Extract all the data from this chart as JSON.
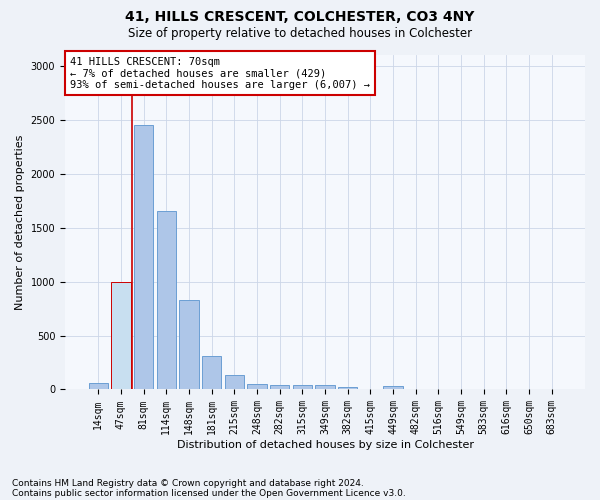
{
  "title1": "41, HILLS CRESCENT, COLCHESTER, CO3 4NY",
  "title2": "Size of property relative to detached houses in Colchester",
  "xlabel": "Distribution of detached houses by size in Colchester",
  "ylabel": "Number of detached properties",
  "categories": [
    "14sqm",
    "47sqm",
    "81sqm",
    "114sqm",
    "148sqm",
    "181sqm",
    "215sqm",
    "248sqm",
    "282sqm",
    "315sqm",
    "349sqm",
    "382sqm",
    "415sqm",
    "449sqm",
    "482sqm",
    "516sqm",
    "549sqm",
    "583sqm",
    "616sqm",
    "650sqm",
    "683sqm"
  ],
  "values": [
    60,
    1000,
    2450,
    1650,
    830,
    310,
    130,
    55,
    45,
    45,
    40,
    22,
    0,
    30,
    0,
    0,
    0,
    0,
    0,
    0,
    0
  ],
  "bar_color": "#aec6e8",
  "bar_edgecolor": "#6b9fd4",
  "highlight_bar_index": 1,
  "highlight_bar_color": "#c8dff0",
  "highlight_bar_edgecolor": "#cc0000",
  "annotation_box_text": "41 HILLS CRESCENT: 70sqm\n← 7% of detached houses are smaller (429)\n93% of semi-detached houses are larger (6,007) →",
  "box_edgecolor": "#cc0000",
  "vline_x": 1.5,
  "vline_color": "#cc0000",
  "footnote1": "Contains HM Land Registry data © Crown copyright and database right 2024.",
  "footnote2": "Contains public sector information licensed under the Open Government Licence v3.0.",
  "ylim": [
    0,
    3100
  ],
  "yticks": [
    0,
    500,
    1000,
    1500,
    2000,
    2500,
    3000
  ],
  "title_fontsize": 10,
  "subtitle_fontsize": 8.5,
  "xlabel_fontsize": 8,
  "ylabel_fontsize": 8,
  "tick_fontsize": 7,
  "annotation_fontsize": 7.5,
  "footnote_fontsize": 6.5,
  "bg_color": "#eef2f8",
  "plot_bg_color": "#f5f8fd",
  "grid_color": "#ccd6e8"
}
